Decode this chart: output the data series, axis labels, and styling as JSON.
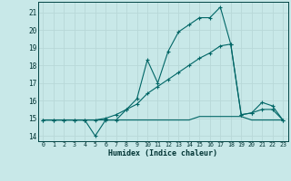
{
  "xlabel": "Humidex (Indice chaleur)",
  "bg_color": "#c8e8e8",
  "grid_color": "#b8d8d8",
  "line_color": "#006666",
  "xlim": [
    -0.5,
    23.5
  ],
  "ylim": [
    13.7,
    21.6
  ],
  "yticks": [
    14,
    15,
    16,
    17,
    18,
    19,
    20,
    21
  ],
  "xticks": [
    0,
    1,
    2,
    3,
    4,
    5,
    6,
    7,
    8,
    9,
    10,
    11,
    12,
    13,
    14,
    15,
    16,
    17,
    18,
    19,
    20,
    21,
    22,
    23
  ],
  "series1_x": [
    0,
    1,
    2,
    3,
    4,
    5,
    6,
    7,
    8,
    9,
    10,
    11,
    12,
    13,
    14,
    15,
    16,
    17,
    18,
    19,
    20,
    21,
    22,
    23
  ],
  "series1_y": [
    14.9,
    14.9,
    14.9,
    14.9,
    14.9,
    14.0,
    14.9,
    14.9,
    15.5,
    16.1,
    18.3,
    17.0,
    18.8,
    19.9,
    20.3,
    20.7,
    20.7,
    21.3,
    19.2,
    15.2,
    15.3,
    15.9,
    15.7,
    14.9
  ],
  "series2_x": [
    0,
    1,
    2,
    3,
    4,
    5,
    6,
    7,
    8,
    9,
    10,
    11,
    12,
    13,
    14,
    15,
    16,
    17,
    18,
    19,
    20,
    21,
    22,
    23
  ],
  "series2_y": [
    14.9,
    14.9,
    14.9,
    14.9,
    14.9,
    14.9,
    15.0,
    15.2,
    15.5,
    15.8,
    16.4,
    16.8,
    17.2,
    17.6,
    18.0,
    18.4,
    18.7,
    19.1,
    19.2,
    15.2,
    15.3,
    15.5,
    15.5,
    14.9
  ],
  "series3_x": [
    0,
    1,
    2,
    3,
    4,
    5,
    6,
    7,
    8,
    9,
    10,
    11,
    12,
    13,
    14,
    15,
    16,
    17,
    18,
    19,
    20,
    21,
    22,
    23
  ],
  "series3_y": [
    14.9,
    14.9,
    14.9,
    14.9,
    14.9,
    14.9,
    14.9,
    14.9,
    14.9,
    14.9,
    14.9,
    14.9,
    14.9,
    14.9,
    14.9,
    15.1,
    15.1,
    15.1,
    15.1,
    15.1,
    14.9,
    14.9,
    14.9,
    14.9
  ]
}
